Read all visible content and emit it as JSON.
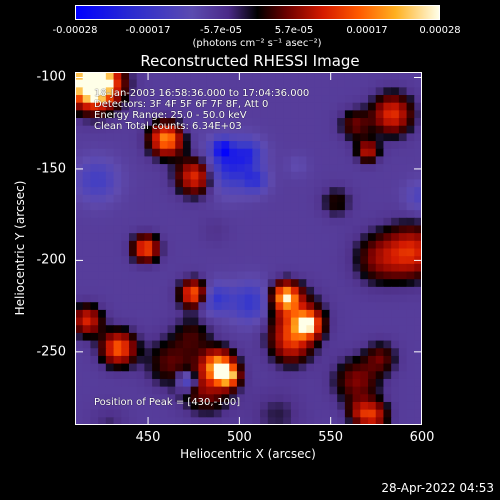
{
  "chart_data": {
    "type": "heatmap",
    "title": "Reconstructed RHESSI Image",
    "xlabel": "Heliocentric X (arcsec)",
    "ylabel": "Heliocentric Y (arcsec)",
    "xlim": [
      410,
      600
    ],
    "ylim": [
      -290,
      -97
    ],
    "x_ticks": [
      "450",
      "500",
      "550",
      "600"
    ],
    "y_ticks": [
      "-100",
      "-150",
      "-200",
      "-250"
    ],
    "colorbar": {
      "ticks": [
        "-0.00028",
        "-0.00017",
        "-5.7e-05",
        "5.7e-05",
        "0.00017",
        "0.00028"
      ],
      "units": "(photons cm⁻² s⁻¹ asec⁻²)",
      "range": [
        -0.00028,
        0.00028
      ]
    },
    "annotations": {
      "time": "18-Jan-2003 16:58:36.000 to 17:04:36.000",
      "detectors": "Detectors: 3F 4F 5F 6F 7F 8F, Att 0",
      "energy": "Energy Range: 25.0 - 50.0 keV",
      "method": "Clean     Total counts: 6.34E+03",
      "peak": "Position of Peak = [430,-100]"
    },
    "timestamp": "28-Apr-2022 04:53"
  }
}
